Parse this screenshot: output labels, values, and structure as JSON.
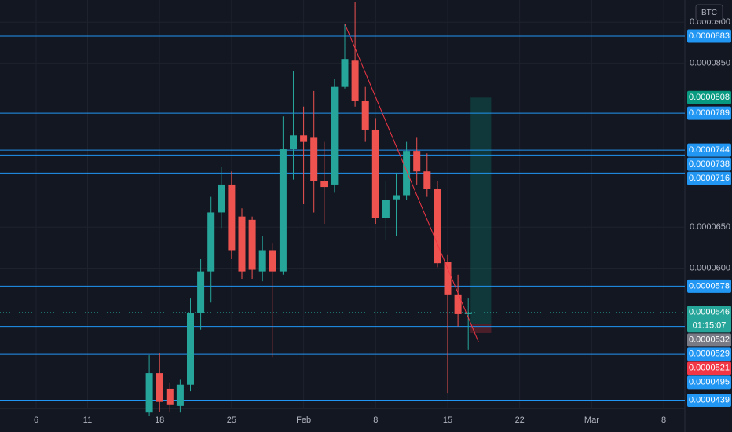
{
  "chart_data": {
    "type": "candlestick",
    "currency": "BTC",
    "categories": [
      null,
      null,
      null,
      "6",
      null,
      null,
      null,
      null,
      "11",
      null,
      null,
      null,
      null,
      null,
      null,
      "18",
      null,
      null,
      null,
      null,
      null,
      null,
      "25",
      null,
      null,
      null,
      null,
      null,
      null,
      "Feb",
      null,
      null,
      null,
      null,
      null,
      null,
      "8",
      null,
      null,
      null,
      null,
      null,
      null,
      "15",
      null,
      null,
      null,
      null,
      null,
      null,
      "22",
      null,
      null,
      null,
      null,
      null,
      null,
      "Mar",
      null,
      null,
      null,
      null,
      null,
      null,
      "8",
      null,
      null
    ],
    "open": [
      null,
      null,
      null,
      null,
      null,
      null,
      null,
      null,
      null,
      null,
      null,
      null,
      null,
      null,
      4.24e-05,
      4.72e-05,
      4.53e-05,
      4.32e-05,
      4.58e-05,
      5.45e-05,
      5.96e-05,
      6.68e-05,
      7.02e-05,
      6.63e-05,
      6.59e-05,
      5.96e-05,
      6.22e-05,
      5.96e-05,
      7.45e-05,
      7.62e-05,
      7.59e-05,
      7.06e-05,
      7.02e-05,
      8.21e-05,
      8.53e-05,
      8.04e-05,
      7.69e-05,
      6.61e-05,
      6.84e-05,
      6.89e-05,
      7.43e-05,
      7.18e-05,
      6.97e-05,
      6.08e-05,
      5.68e-05,
      5.44e-05,
      null,
      null,
      null,
      null,
      null,
      null,
      null,
      null,
      null,
      null,
      null,
      null,
      null,
      null,
      null,
      null,
      null,
      null,
      null,
      null,
      null
    ],
    "high": [
      null,
      null,
      null,
      null,
      null,
      null,
      null,
      null,
      null,
      null,
      null,
      null,
      null,
      null,
      4.94e-05,
      4.96e-05,
      4.6e-05,
      4.64e-05,
      5.63e-05,
      6.11e-05,
      6.87e-05,
      7.24e-05,
      7.18e-05,
      6.73e-05,
      6.63e-05,
      6.39e-05,
      6.3e-05,
      7.85e-05,
      8.4e-05,
      7.97e-05,
      8.16e-05,
      7.54e-05,
      8.31e-05,
      8.98e-05,
      9.25e-05,
      8.21e-05,
      7.83e-05,
      7.06e-05,
      7.16e-05,
      7.54e-05,
      7.59e-05,
      7.4e-05,
      7.06e-05,
      6.16e-05,
      5.92e-05,
      5.63e-05,
      null,
      null,
      null,
      null,
      null,
      null,
      null,
      null,
      null,
      null,
      null,
      null,
      null,
      null,
      null,
      null,
      null,
      null,
      null,
      null,
      null
    ],
    "low": [
      null,
      null,
      null,
      null,
      null,
      null,
      null,
      null,
      null,
      null,
      null,
      null,
      null,
      null,
      4.2e-05,
      4.25e-05,
      4.25e-05,
      4.24e-05,
      4.5e-05,
      5.25e-05,
      5.58e-05,
      6.49e-05,
      6.11e-05,
      5.87e-05,
      5.87e-05,
      5.84e-05,
      4.91e-05,
      5.92e-05,
      7.08e-05,
      6.78e-05,
      6.68e-05,
      6.54e-05,
      6.92e-05,
      8.19e-05,
      7.97e-05,
      7.54e-05,
      6.54e-05,
      6.35e-05,
      6.39e-05,
      6.83e-05,
      7.02e-05,
      6.87e-05,
      6.01e-05,
      4.48e-05,
      5.29e-05,
      5.01e-05,
      null,
      null,
      null,
      null,
      null,
      null,
      null,
      null,
      null,
      null,
      null,
      null,
      null,
      null,
      null,
      null,
      null,
      null,
      null,
      null,
      null
    ],
    "close": [
      null,
      null,
      null,
      null,
      null,
      null,
      null,
      null,
      null,
      null,
      null,
      null,
      null,
      null,
      4.72e-05,
      4.37e-05,
      4.34e-05,
      4.58e-05,
      5.45e-05,
      5.96e-05,
      6.68e-05,
      7.02e-05,
      6.22e-05,
      5.96e-05,
      5.98e-05,
      6.22e-05,
      5.96e-05,
      7.45e-05,
      7.62e-05,
      7.54e-05,
      7.06e-05,
      6.99e-05,
      8.21e-05,
      8.55e-05,
      8.04e-05,
      7.69e-05,
      6.61e-05,
      6.83e-05,
      6.89e-05,
      7.43e-05,
      7.18e-05,
      6.97e-05,
      6.06e-05,
      5.68e-05,
      5.44e-05,
      5.46e-05,
      null,
      null,
      null,
      null,
      null,
      null,
      null,
      null,
      null,
      null,
      null,
      null,
      null,
      null,
      null,
      null,
      null,
      null,
      null,
      null,
      null
    ],
    "up_color": "#26a69a",
    "down_color": "#ef5350",
    "ylim": [
      4.29e-05,
      9.27e-05
    ],
    "yticks": [
      {
        "value": 9e-05,
        "label": "0.0000900"
      },
      {
        "value": 8.5e-05,
        "label": "0.0000850"
      },
      {
        "value": 6.5e-05,
        "label": "0.0000650"
      },
      {
        "value": 6e-05,
        "label": "0.0000600"
      }
    ],
    "grid": true,
    "lines": [
      8.83e-05,
      7.89e-05,
      7.44e-05,
      7.38e-05,
      7.16e-05,
      5.78e-05,
      5.29e-05,
      4.95e-05,
      4.39e-05
    ],
    "line_color": "#2196f3",
    "last_price": 5.46e-05,
    "last_color": "#26a69a",
    "countdown": "01:15:07",
    "position": {
      "from": 45,
      "to": 47,
      "target": 8.08e-05,
      "entry": 5.32e-05,
      "stop": 5.21e-05,
      "target_color": "#089981",
      "entry_color": "#787b86",
      "stop_color": "#f23645"
    },
    "trend_line": {
      "from": 33,
      "to": 46,
      "from_value": 8.98e-05,
      "to_value": 5.1e-05,
      "color": "#f23645"
    }
  }
}
